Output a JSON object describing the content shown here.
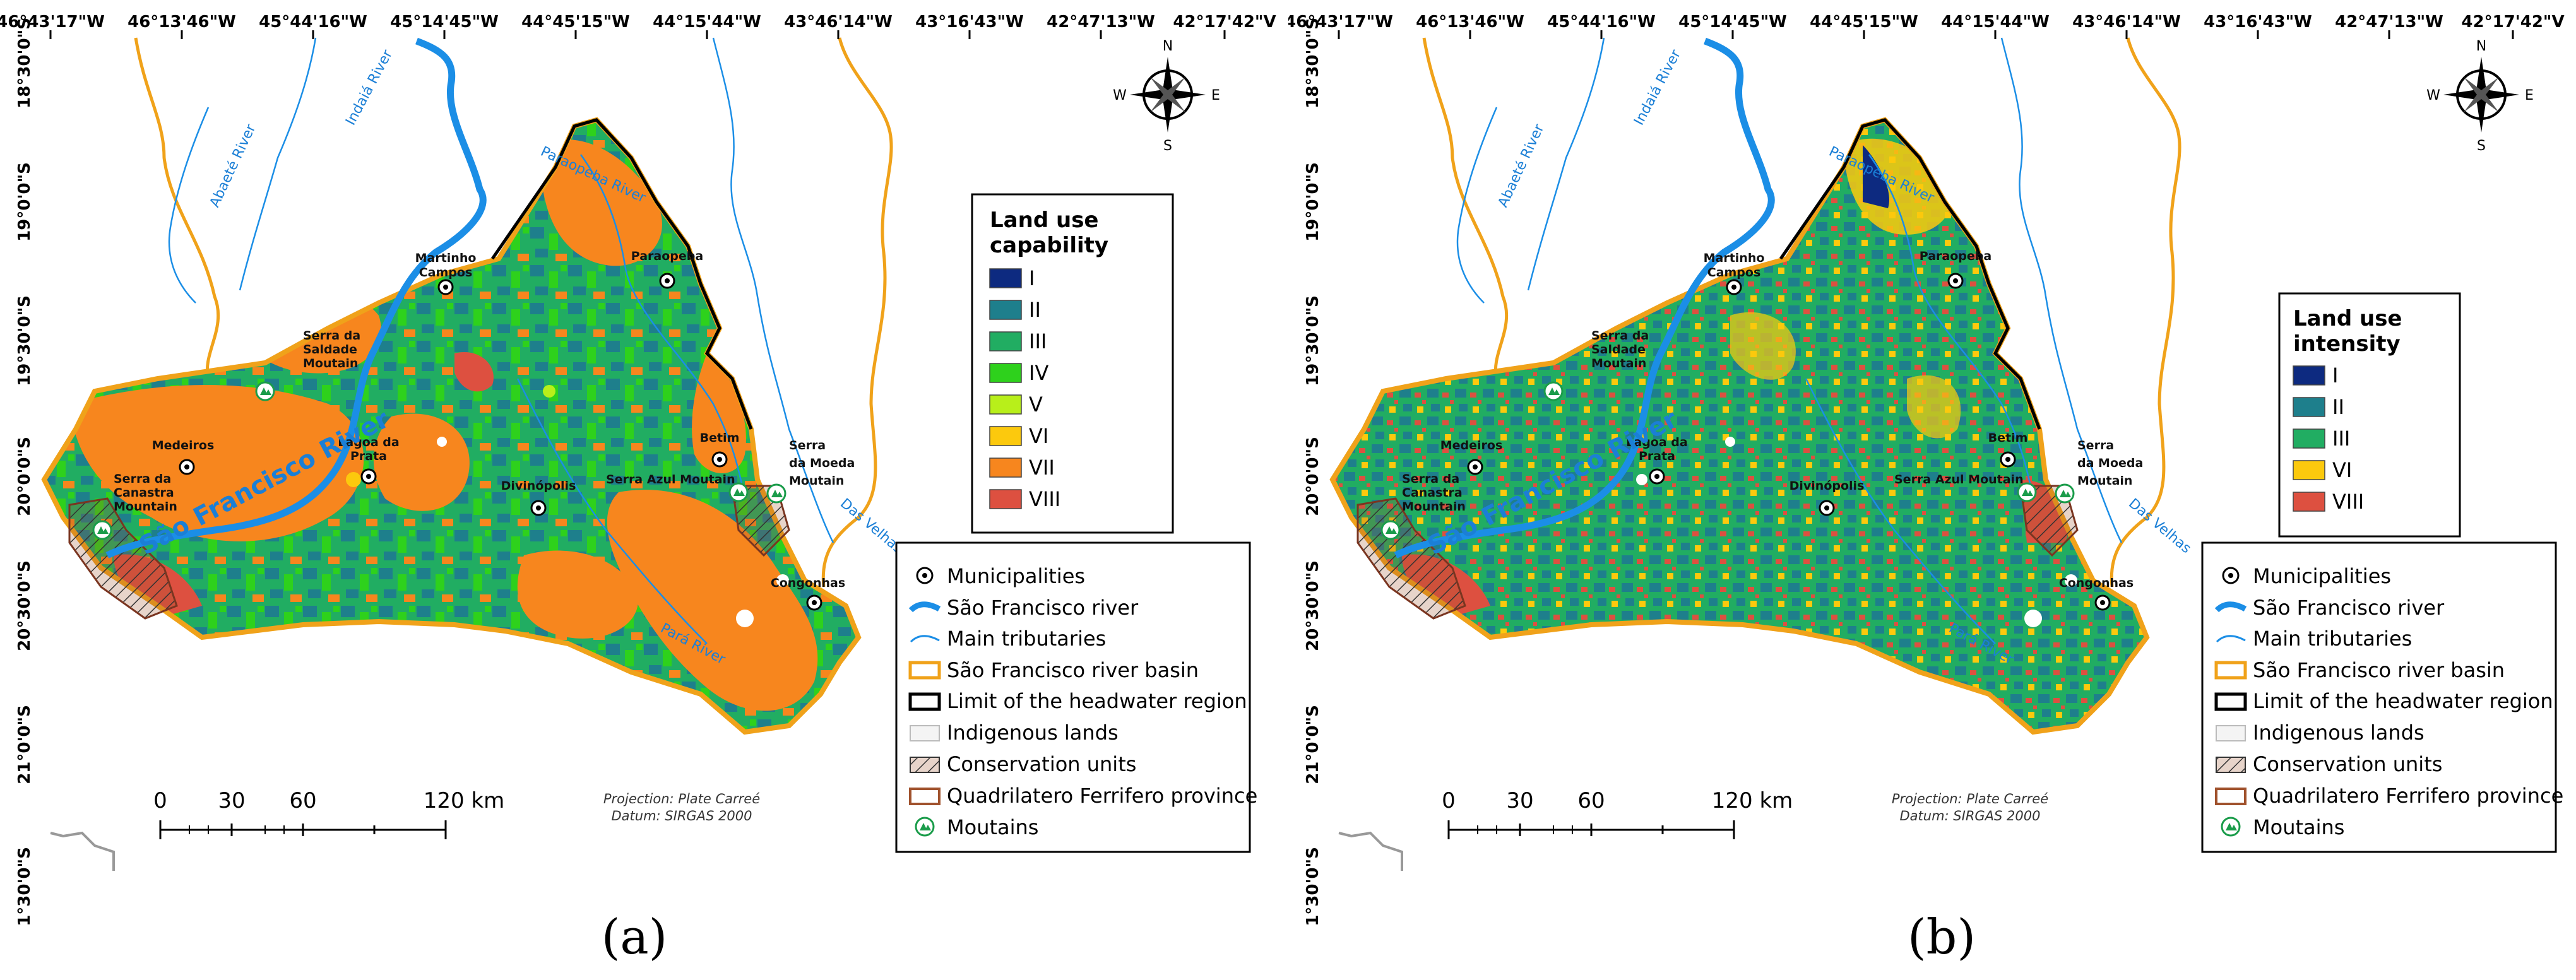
{
  "panels": [
    {
      "label": "(a)",
      "legend_title_line1": "Land use",
      "legend_title_line2": "capability",
      "classes": [
        {
          "label": "I",
          "color": "#0d2a80"
        },
        {
          "label": "II",
          "color": "#1e7f8c"
        },
        {
          "label": "III",
          "color": "#21ad62"
        },
        {
          "label": "IV",
          "color": "#2ed11c"
        },
        {
          "label": "V",
          "color": "#b8ef1a"
        },
        {
          "label": "VI",
          "color": "#fcc90d"
        },
        {
          "label": "VII",
          "color": "#f7861e"
        },
        {
          "label": "VIII",
          "color": "#dd5040"
        }
      ]
    },
    {
      "label": "(b)",
      "legend_title_line1": "Land use",
      "legend_title_line2": "intensity",
      "classes": [
        {
          "label": "I",
          "color": "#0d2a80"
        },
        {
          "label": "II",
          "color": "#1e7f8c"
        },
        {
          "label": "III",
          "color": "#21ad62"
        },
        {
          "label": "VI",
          "color": "#fcc90d"
        },
        {
          "label": "VIII",
          "color": "#dd5040"
        }
      ]
    }
  ],
  "lon_ticks": [
    "46°43'17\"W",
    "46°13'46\"W",
    "45°44'16\"W",
    "45°14'45\"W",
    "44°45'15\"W",
    "44°15'44\"W",
    "43°46'14\"W",
    "43°16'43\"W",
    "42°47'13\"W",
    "42°17'42\"V"
  ],
  "lat_ticks": [
    "18°30'0\"S",
    "19°0'0\"S",
    "19°30'0\"S",
    "20°0'0\"S",
    "20°30'0\"S",
    "21°0'0\"S",
    "1°30'0\"S"
  ],
  "places": {
    "martinho_1": "Martinho",
    "martinho_2": "Campos",
    "paraopeba": "Paraopeba",
    "serra_saudade_1": "Serra da",
    "serra_saudade_2": "Saldade",
    "serra_saudade_3": "Moutain",
    "medeiros": "Medeiros",
    "lagoa_1": "Lagoa da",
    "lagoa_2": "Prata",
    "canastra_1": "Serra da",
    "canastra_2": "Canastra",
    "canastra_3": "Mountain",
    "divinopolis": "Divinópolis",
    "betim": "Betim",
    "serra_azul": "Serra Azul Moutain",
    "moeda_1": "Serra",
    "moeda_2": "da Moeda",
    "moeda_3": "Moutain",
    "congonhas": "Congonhas"
  },
  "rivers": {
    "indaia": "Indaiá River",
    "abaete": "Abaeté River",
    "paraopeba": "Paraopeba River",
    "sao_francisco": "São Francisco River",
    "para": "Pará River",
    "das_velhas": "Das Velhas"
  },
  "compass": {
    "n": "N",
    "s": "S",
    "e": "E",
    "w": "W"
  },
  "scale": {
    "labels": [
      "0",
      "30",
      "60",
      "120 km"
    ]
  },
  "projection_line1": "Projection: Plate Carreé",
  "projection_line2": "Datum: SIRGAS 2000",
  "legend2": [
    {
      "label": "Municipalities",
      "icon": "municipality-icon"
    },
    {
      "label": "São Francisco river",
      "icon": "main-river-line"
    },
    {
      "label": "Main tributaries",
      "icon": "tributary-line"
    },
    {
      "label": "São Francisco river basin",
      "icon": "basin-outline"
    },
    {
      "label": "Limit of the headwater region",
      "icon": "region-outline"
    },
    {
      "label": "Indigenous lands",
      "icon": "indigenous-fill"
    },
    {
      "label": "Conservation units",
      "icon": "hatch-fill"
    },
    {
      "label": "Quadrilatero Ferrifero province",
      "icon": "province-outline"
    },
    {
      "label": "Moutains",
      "icon": "mountain-icon"
    }
  ]
}
